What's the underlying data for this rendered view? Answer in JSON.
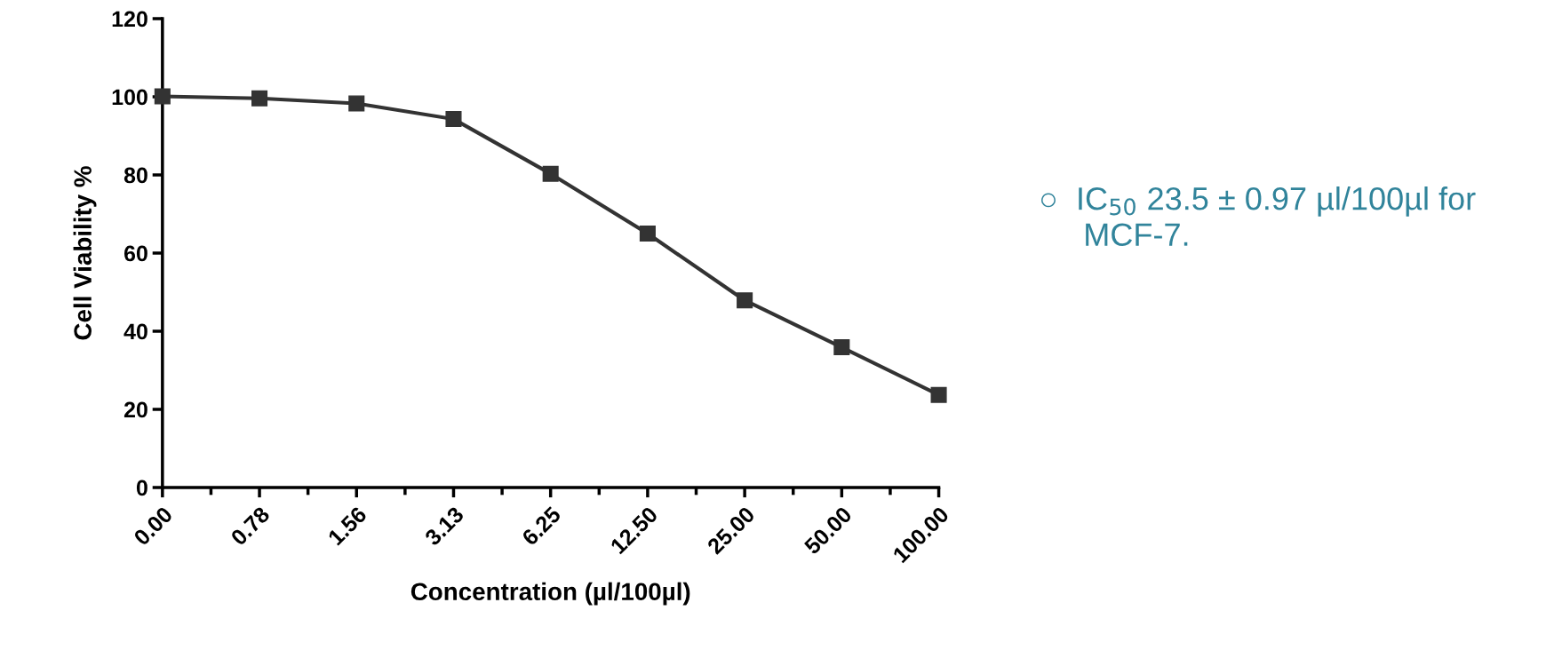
{
  "chart_data": {
    "type": "line",
    "xlabel": "Concentration (µl/100µl)",
    "ylabel": "Cell Viability %",
    "categories": [
      "0.00",
      "0.78",
      "1.56",
      "3.13",
      "6.25",
      "12.50",
      "25.00",
      "50.00",
      "100.00"
    ],
    "series": [
      {
        "color": "#333333",
        "values": [
          100.1,
          99.6,
          98.3,
          94.3,
          80.3,
          65.0,
          47.9,
          35.9,
          23.7
        ]
      }
    ],
    "ylim": [
      0,
      120
    ],
    "yticks": [
      0,
      20,
      40,
      60,
      80,
      100,
      120
    ],
    "grid": false,
    "legend": false,
    "marker": "square",
    "line_style": "solid",
    "annotations": [
      "○  IC$_{50}$ 23.5 ± 0.97 µl/100µl for\n     MCF-7."
    ]
  }
}
